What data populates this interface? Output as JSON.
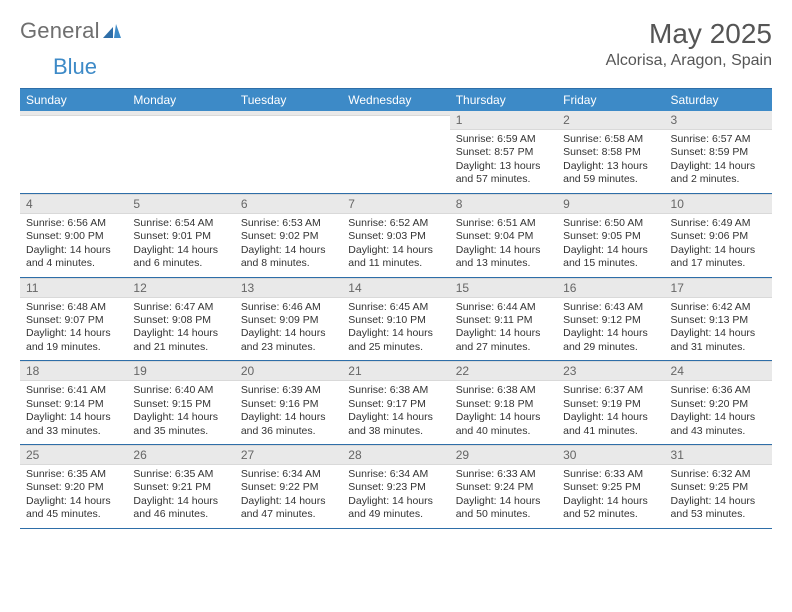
{
  "brand": {
    "general": "General",
    "blue": "Blue"
  },
  "header": {
    "month_title": "May 2025",
    "location": "Alcorisa, Aragon, Spain"
  },
  "colors": {
    "accent": "#3d8ac7",
    "header_rule": "#2e6ea8",
    "daynum_bg": "#e9e9e9",
    "text": "#333333",
    "muted": "#6f6f6f",
    "bg": "#ffffff"
  },
  "days_of_week": [
    "Sunday",
    "Monday",
    "Tuesday",
    "Wednesday",
    "Thursday",
    "Friday",
    "Saturday"
  ],
  "weeks": [
    [
      {
        "n": "",
        "sunrise": "",
        "sunset": "",
        "daylight": ""
      },
      {
        "n": "",
        "sunrise": "",
        "sunset": "",
        "daylight": ""
      },
      {
        "n": "",
        "sunrise": "",
        "sunset": "",
        "daylight": ""
      },
      {
        "n": "",
        "sunrise": "",
        "sunset": "",
        "daylight": ""
      },
      {
        "n": "1",
        "sunrise": "Sunrise: 6:59 AM",
        "sunset": "Sunset: 8:57 PM",
        "daylight": "Daylight: 13 hours and 57 minutes."
      },
      {
        "n": "2",
        "sunrise": "Sunrise: 6:58 AM",
        "sunset": "Sunset: 8:58 PM",
        "daylight": "Daylight: 13 hours and 59 minutes."
      },
      {
        "n": "3",
        "sunrise": "Sunrise: 6:57 AM",
        "sunset": "Sunset: 8:59 PM",
        "daylight": "Daylight: 14 hours and 2 minutes."
      }
    ],
    [
      {
        "n": "4",
        "sunrise": "Sunrise: 6:56 AM",
        "sunset": "Sunset: 9:00 PM",
        "daylight": "Daylight: 14 hours and 4 minutes."
      },
      {
        "n": "5",
        "sunrise": "Sunrise: 6:54 AM",
        "sunset": "Sunset: 9:01 PM",
        "daylight": "Daylight: 14 hours and 6 minutes."
      },
      {
        "n": "6",
        "sunrise": "Sunrise: 6:53 AM",
        "sunset": "Sunset: 9:02 PM",
        "daylight": "Daylight: 14 hours and 8 minutes."
      },
      {
        "n": "7",
        "sunrise": "Sunrise: 6:52 AM",
        "sunset": "Sunset: 9:03 PM",
        "daylight": "Daylight: 14 hours and 11 minutes."
      },
      {
        "n": "8",
        "sunrise": "Sunrise: 6:51 AM",
        "sunset": "Sunset: 9:04 PM",
        "daylight": "Daylight: 14 hours and 13 minutes."
      },
      {
        "n": "9",
        "sunrise": "Sunrise: 6:50 AM",
        "sunset": "Sunset: 9:05 PM",
        "daylight": "Daylight: 14 hours and 15 minutes."
      },
      {
        "n": "10",
        "sunrise": "Sunrise: 6:49 AM",
        "sunset": "Sunset: 9:06 PM",
        "daylight": "Daylight: 14 hours and 17 minutes."
      }
    ],
    [
      {
        "n": "11",
        "sunrise": "Sunrise: 6:48 AM",
        "sunset": "Sunset: 9:07 PM",
        "daylight": "Daylight: 14 hours and 19 minutes."
      },
      {
        "n": "12",
        "sunrise": "Sunrise: 6:47 AM",
        "sunset": "Sunset: 9:08 PM",
        "daylight": "Daylight: 14 hours and 21 minutes."
      },
      {
        "n": "13",
        "sunrise": "Sunrise: 6:46 AM",
        "sunset": "Sunset: 9:09 PM",
        "daylight": "Daylight: 14 hours and 23 minutes."
      },
      {
        "n": "14",
        "sunrise": "Sunrise: 6:45 AM",
        "sunset": "Sunset: 9:10 PM",
        "daylight": "Daylight: 14 hours and 25 minutes."
      },
      {
        "n": "15",
        "sunrise": "Sunrise: 6:44 AM",
        "sunset": "Sunset: 9:11 PM",
        "daylight": "Daylight: 14 hours and 27 minutes."
      },
      {
        "n": "16",
        "sunrise": "Sunrise: 6:43 AM",
        "sunset": "Sunset: 9:12 PM",
        "daylight": "Daylight: 14 hours and 29 minutes."
      },
      {
        "n": "17",
        "sunrise": "Sunrise: 6:42 AM",
        "sunset": "Sunset: 9:13 PM",
        "daylight": "Daylight: 14 hours and 31 minutes."
      }
    ],
    [
      {
        "n": "18",
        "sunrise": "Sunrise: 6:41 AM",
        "sunset": "Sunset: 9:14 PM",
        "daylight": "Daylight: 14 hours and 33 minutes."
      },
      {
        "n": "19",
        "sunrise": "Sunrise: 6:40 AM",
        "sunset": "Sunset: 9:15 PM",
        "daylight": "Daylight: 14 hours and 35 minutes."
      },
      {
        "n": "20",
        "sunrise": "Sunrise: 6:39 AM",
        "sunset": "Sunset: 9:16 PM",
        "daylight": "Daylight: 14 hours and 36 minutes."
      },
      {
        "n": "21",
        "sunrise": "Sunrise: 6:38 AM",
        "sunset": "Sunset: 9:17 PM",
        "daylight": "Daylight: 14 hours and 38 minutes."
      },
      {
        "n": "22",
        "sunrise": "Sunrise: 6:38 AM",
        "sunset": "Sunset: 9:18 PM",
        "daylight": "Daylight: 14 hours and 40 minutes."
      },
      {
        "n": "23",
        "sunrise": "Sunrise: 6:37 AM",
        "sunset": "Sunset: 9:19 PM",
        "daylight": "Daylight: 14 hours and 41 minutes."
      },
      {
        "n": "24",
        "sunrise": "Sunrise: 6:36 AM",
        "sunset": "Sunset: 9:20 PM",
        "daylight": "Daylight: 14 hours and 43 minutes."
      }
    ],
    [
      {
        "n": "25",
        "sunrise": "Sunrise: 6:35 AM",
        "sunset": "Sunset: 9:20 PM",
        "daylight": "Daylight: 14 hours and 45 minutes."
      },
      {
        "n": "26",
        "sunrise": "Sunrise: 6:35 AM",
        "sunset": "Sunset: 9:21 PM",
        "daylight": "Daylight: 14 hours and 46 minutes."
      },
      {
        "n": "27",
        "sunrise": "Sunrise: 6:34 AM",
        "sunset": "Sunset: 9:22 PM",
        "daylight": "Daylight: 14 hours and 47 minutes."
      },
      {
        "n": "28",
        "sunrise": "Sunrise: 6:34 AM",
        "sunset": "Sunset: 9:23 PM",
        "daylight": "Daylight: 14 hours and 49 minutes."
      },
      {
        "n": "29",
        "sunrise": "Sunrise: 6:33 AM",
        "sunset": "Sunset: 9:24 PM",
        "daylight": "Daylight: 14 hours and 50 minutes."
      },
      {
        "n": "30",
        "sunrise": "Sunrise: 6:33 AM",
        "sunset": "Sunset: 9:25 PM",
        "daylight": "Daylight: 14 hours and 52 minutes."
      },
      {
        "n": "31",
        "sunrise": "Sunrise: 6:32 AM",
        "sunset": "Sunset: 9:25 PM",
        "daylight": "Daylight: 14 hours and 53 minutes."
      }
    ]
  ]
}
